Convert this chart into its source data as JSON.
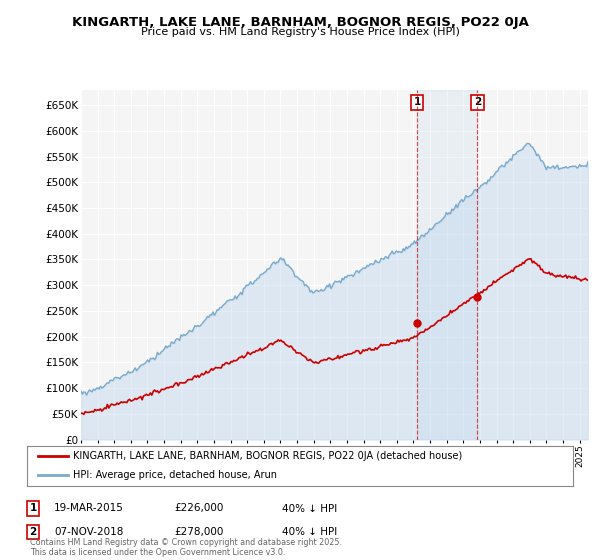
{
  "title": "KINGARTH, LAKE LANE, BARNHAM, BOGNOR REGIS, PO22 0JA",
  "subtitle": "Price paid vs. HM Land Registry's House Price Index (HPI)",
  "hpi_color": "#a8c8e8",
  "hpi_line_color": "#7aaacc",
  "price_color": "#cc0000",
  "vline_color": "#cc0000",
  "background_color": "#ffffff",
  "plot_bg_color": "#f5f5f5",
  "ylim": [
    0,
    680000
  ],
  "ytick_step": 50000,
  "year_start": 1995,
  "year_end": 2025,
  "sale1_year": 2015.22,
  "sale1_price": 226000,
  "sale1_date": "19-MAR-2015",
  "sale1_hpi_pct": "40%",
  "sale2_year": 2018.85,
  "sale2_price": 278000,
  "sale2_date": "07-NOV-2018",
  "sale2_hpi_pct": "40%",
  "legend_line1": "KINGARTH, LAKE LANE, BARNHAM, BOGNOR REGIS, PO22 0JA (detached house)",
  "legend_line2": "HPI: Average price, detached house, Arun",
  "footer": "Contains HM Land Registry data © Crown copyright and database right 2025.\nThis data is licensed under the Open Government Licence v3.0."
}
